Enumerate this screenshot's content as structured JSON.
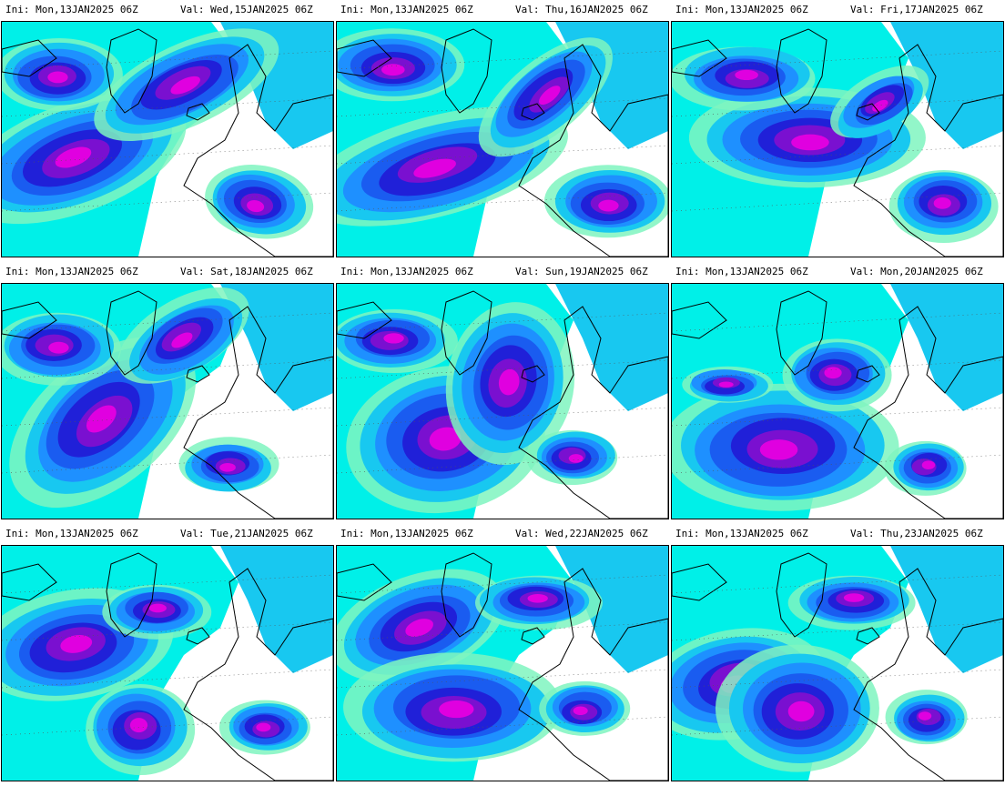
{
  "panels": [
    {
      "ini": "Ini:  Mon,13JAN2025 06Z",
      "val": "Val:  Wed,15JAN2025 06Z"
    },
    {
      "ini": "Ini:  Mon,13JAN2025 06Z",
      "val": "Val:  Thu,16JAN2025 06Z"
    },
    {
      "ini": "Ini:  Mon,13JAN2025 06Z",
      "val": "Val:  Fri,17JAN2025 06Z"
    },
    {
      "ini": "Ini:  Mon,13JAN2025 06Z",
      "val": "Val:  Sat,18JAN2025 06Z"
    },
    {
      "ini": "Ini:  Mon,13JAN2025 06Z",
      "val": "Val:  Sun,19JAN2025 06Z"
    },
    {
      "ini": "Ini:  Mon,13JAN2025 06Z",
      "val": "Val:  Mon,20JAN2025 06Z"
    },
    {
      "ini": "Ini:  Mon,13JAN2025 06Z",
      "val": "Val:  Tue,21JAN2025 06Z"
    },
    {
      "ini": "Ini:  Mon,13JAN2025 06Z",
      "val": "Val:  Wed,22JAN2025 06Z"
    },
    {
      "ini": "Ini:  Mon,13JAN2025 06Z",
      "val": "Val:  Thu,23JAN2025 06Z"
    }
  ],
  "colors": {
    "level1": "#7ff5c0",
    "level2": "#00f0e8",
    "level3": "#18c8f0",
    "level4": "#1e90ff",
    "level5": "#1a5cf0",
    "level6": "#2020d8",
    "level7": "#7a10d0",
    "level8": "#e000e0",
    "coastline": "#000000",
    "background": "#ffffff"
  }
}
